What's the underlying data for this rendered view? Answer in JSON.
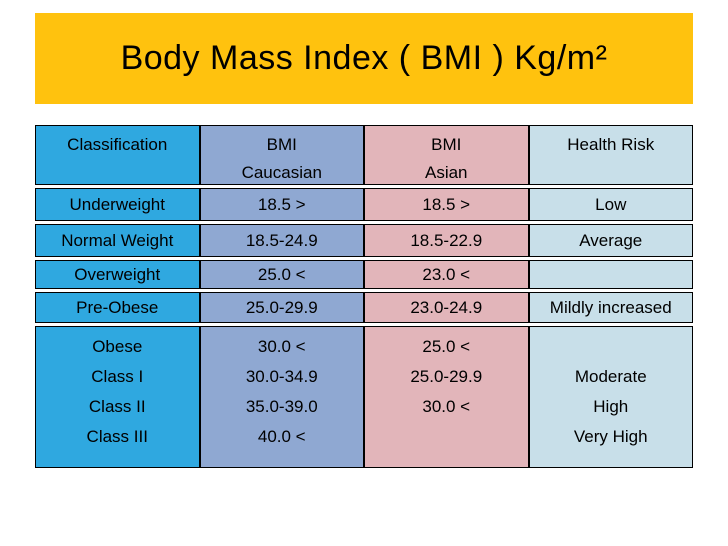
{
  "title": "Body Mass Index ( BMI ) Kg/m²",
  "colors": {
    "banner_yellow": "#FFC20E",
    "classification_column": "#2FA8E0",
    "bmi_caucasian_column": "#8FA8D2",
    "bmi_asian_column": "#E2B5BA",
    "health_risk_column": "#C8DFE9"
  },
  "table": {
    "header": {
      "classification": [
        "Classification"
      ],
      "caucasian": [
        "BMI",
        "Caucasian"
      ],
      "asian": [
        "BMI",
        "Asian"
      ],
      "risk": [
        "Health Risk"
      ]
    },
    "rows": [
      {
        "classification": [
          "Underweight"
        ],
        "caucasian": [
          "18.5 >"
        ],
        "asian": [
          "18.5 >"
        ],
        "risk": [
          "Low"
        ]
      },
      {
        "classification": [
          "Normal Weight"
        ],
        "caucasian": [
          "18.5-24.9"
        ],
        "asian": [
          "18.5-22.9"
        ],
        "risk": [
          "Average"
        ]
      },
      {
        "classification": [
          "Overweight"
        ],
        "caucasian": [
          "25.0 <"
        ],
        "asian": [
          "23.0 <"
        ],
        "risk": [
          ""
        ]
      },
      {
        "classification": [
          "Pre-Obese"
        ],
        "caucasian": [
          "25.0-29.9"
        ],
        "asian": [
          "23.0-24.9"
        ],
        "risk": [
          "Mildly increased"
        ]
      },
      {
        "classification": [
          "Obese",
          "Class I",
          "Class II",
          "Class III"
        ],
        "caucasian": [
          "30.0 <",
          "30.0-34.9",
          "35.0-39.0",
          "40.0 <"
        ],
        "asian": [
          "25.0 <",
          "25.0-29.9",
          "30.0 <",
          ""
        ],
        "risk": [
          "",
          "Moderate",
          "High",
          "Very High"
        ]
      }
    ]
  }
}
